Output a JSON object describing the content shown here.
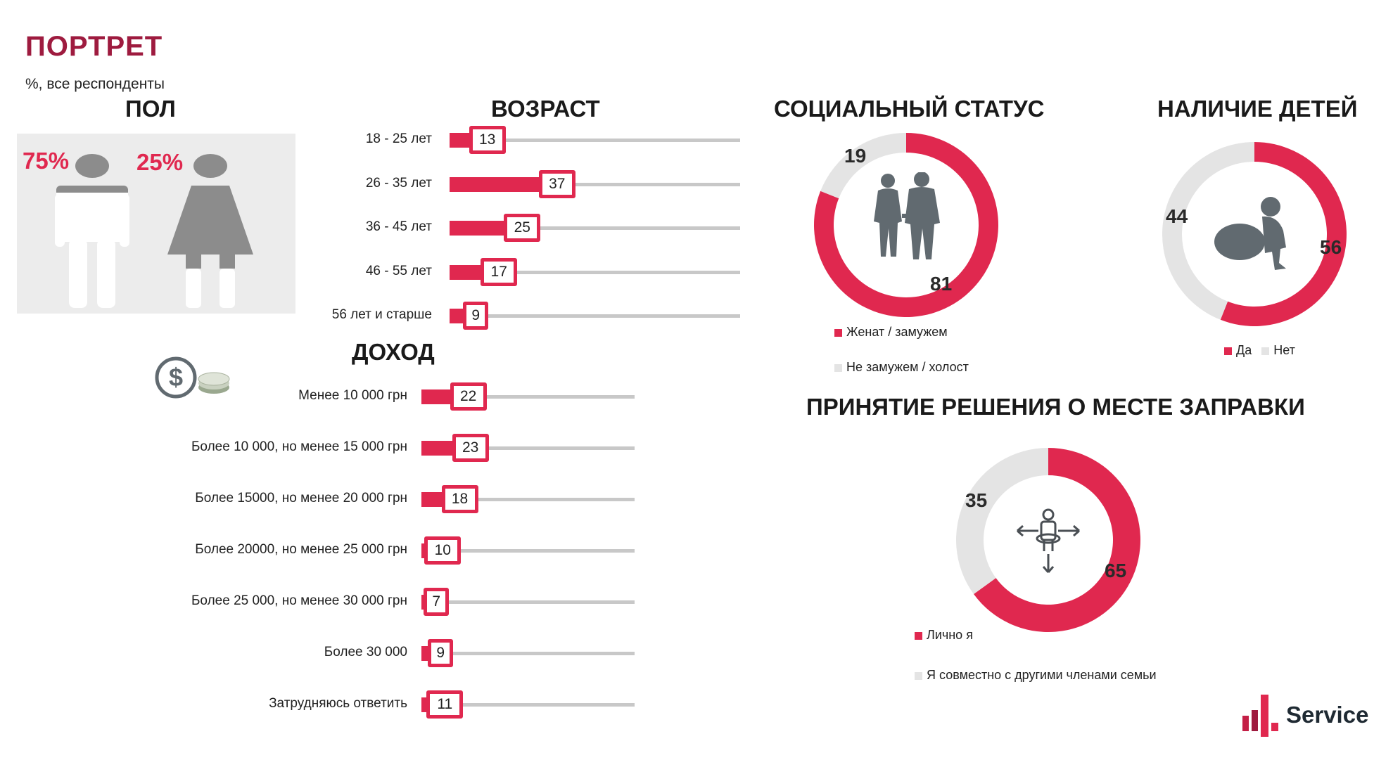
{
  "header": {
    "title": "ПОРТРЕТ",
    "subtitle": "%, все респонденты"
  },
  "colors": {
    "accent": "#e0284f",
    "grey": "#e4e4e4",
    "track": "#c8c8c8",
    "brand": "#9e1b3f",
    "icon": "#616a70"
  },
  "gender": {
    "title": "ПОЛ",
    "male_pct": "75%",
    "female_pct": "25%"
  },
  "logo": {
    "text": "Service"
  },
  "chart_data": [
    {
      "type": "bar",
      "title": "ВОЗРАСТ",
      "categories": [
        "18 - 25 лет",
        "26 - 35 лет",
        "36 - 45 лет",
        "46 - 55 лет",
        "56 лет и старше"
      ],
      "values": [
        13,
        37,
        25,
        17,
        9
      ],
      "xlim": [
        0,
        100
      ]
    },
    {
      "type": "bar",
      "title": "ДОХОД",
      "categories": [
        "Менее 10 000 грн",
        "Более 10 000, но менее 15 000 грн",
        "Более 15000, но менее 20 000 грн",
        "Более 20000, но менее 25 000 грн",
        "Более 25 000, но менее 30 000 грн",
        "Более 30 000",
        "Затрудняюсь ответить"
      ],
      "values": [
        22,
        23,
        18,
        10,
        7,
        9,
        11
      ],
      "xlim": [
        0,
        100
      ]
    },
    {
      "type": "pie",
      "title": "СОЦИАЛЬНЫЙ СТАТУС",
      "categories": [
        "Женат / замужем",
        "Не замужем / холост"
      ],
      "values": [
        81,
        19
      ]
    },
    {
      "type": "pie",
      "title": "НАЛИЧИЕ ДЕТЕЙ",
      "categories": [
        "Да",
        "Нет"
      ],
      "values": [
        56,
        44
      ]
    },
    {
      "type": "pie",
      "title": "ПРИНЯТИЕ РЕШЕНИЯ О МЕСТЕ ЗАПРАВКИ",
      "categories": [
        "Лично я",
        "Я совместно с другими членами семьи"
      ],
      "values": [
        65,
        35
      ]
    }
  ]
}
